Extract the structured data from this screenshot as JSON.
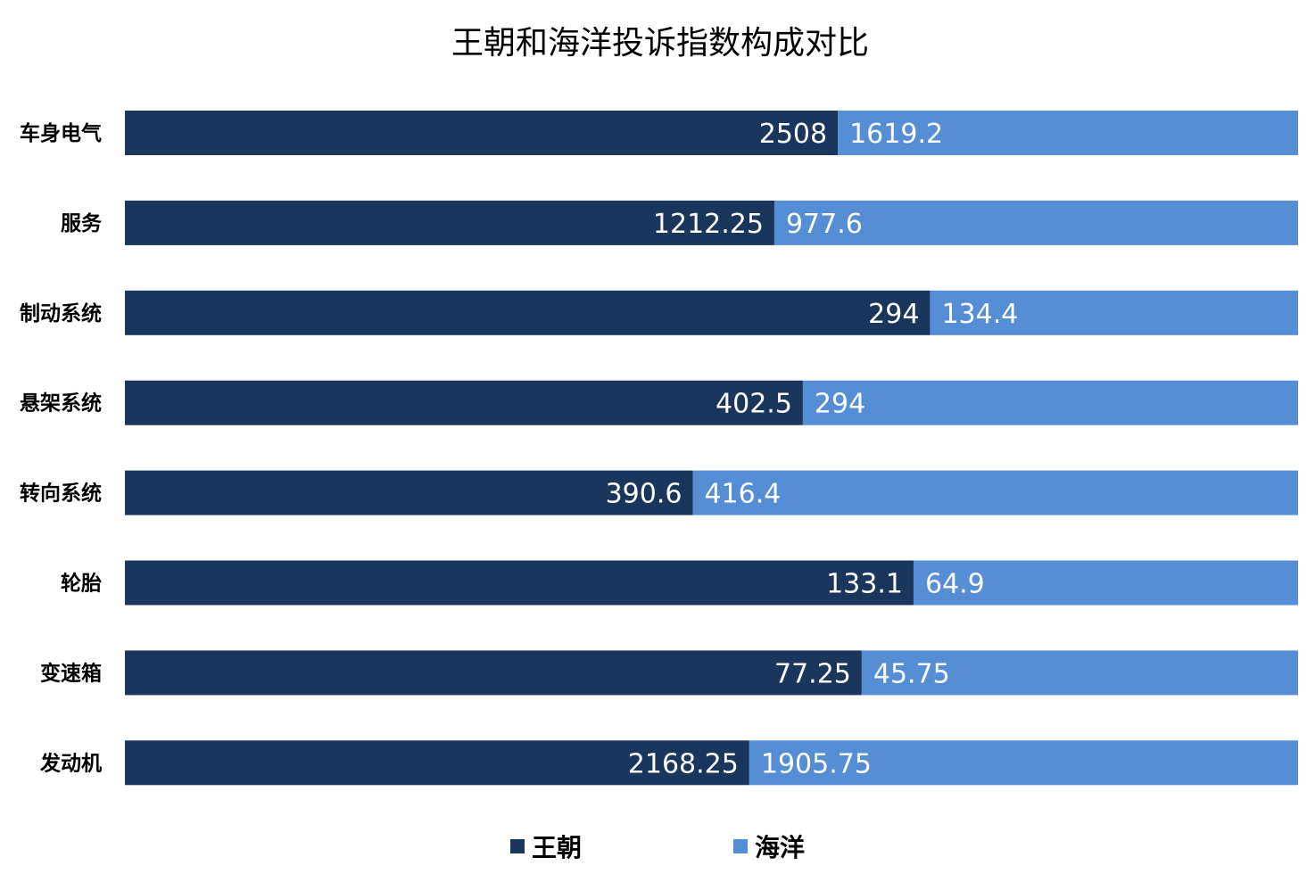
{
  "chart_data": {
    "type": "bar",
    "orientation": "horizontal",
    "stacking": "percent",
    "title": "王朝和海洋投诉指数构成对比",
    "categories": [
      "车身电气",
      "服务",
      "制动系统",
      "悬架系统",
      "转向系统",
      "轮胎",
      "变速箱",
      "发动机"
    ],
    "series": [
      {
        "name": "王朝",
        "color": "#1a365d",
        "values": [
          2508,
          1212.25,
          294,
          402.5,
          390.6,
          133.1,
          77.25,
          2168.25
        ],
        "labels": [
          "2508",
          "1212.25",
          "294",
          "402.5",
          "390.6",
          "133.1",
          "77.25",
          "2168.25"
        ]
      },
      {
        "name": "海洋",
        "color": "#558ed5",
        "values": [
          1619.2,
          977.6,
          134.4,
          294,
          416.4,
          64.9,
          45.75,
          1905.75
        ],
        "labels": [
          "1619.2",
          "977.6",
          "134.4",
          "294",
          "416.4",
          "64.9",
          "45.75",
          "1905.75"
        ]
      }
    ],
    "xlabel": "",
    "ylabel": "",
    "grid": false,
    "legend_position": "bottom"
  }
}
